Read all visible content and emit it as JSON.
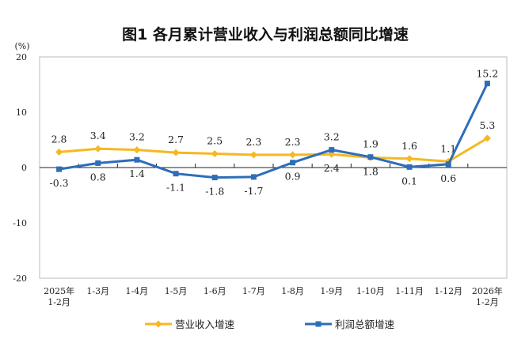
{
  "chart_data": {
    "type": "line",
    "title": "图1  各月累计营业收入与利润总额同比增速",
    "ylabel": "(%)",
    "ylim": [
      -20,
      20
    ],
    "yticks": [
      "20",
      "10",
      "0",
      "-10",
      "-20"
    ],
    "ytick_values": [
      20,
      10,
      0,
      -10,
      -20
    ],
    "categories": [
      [
        "2025年",
        "1-2月"
      ],
      [
        "1-3月"
      ],
      [
        "1-4月"
      ],
      [
        "1-5月"
      ],
      [
        "1-6月"
      ],
      [
        "1-7月"
      ],
      [
        "1-8月"
      ],
      [
        "1-9月"
      ],
      [
        "1-10月"
      ],
      [
        "1-11月"
      ],
      [
        "1-12月"
      ],
      [
        "2026年",
        "1-2月"
      ]
    ],
    "series": [
      {
        "name": "营业收入增速",
        "color": "#F5B820",
        "marker": "diamond",
        "values": [
          2.8,
          3.4,
          3.2,
          2.7,
          2.5,
          2.3,
          2.3,
          2.4,
          1.8,
          1.6,
          1.1,
          5.3
        ],
        "labels": [
          "2.8",
          "3.4",
          "3.2",
          "2.7",
          "2.5",
          "2.3",
          "2.3",
          "2.4",
          "1.8",
          "1.6",
          "1.1",
          "5.3"
        ]
      },
      {
        "name": "利润总额增速",
        "color": "#2E6DB8",
        "marker": "square",
        "values": [
          -0.3,
          0.8,
          1.4,
          -1.1,
          -1.8,
          -1.7,
          0.9,
          3.2,
          1.9,
          0.1,
          0.6,
          15.2
        ],
        "labels": [
          "-0.3",
          "0.8",
          "1.4",
          "-1.1",
          "-1.8",
          "-1.7",
          "0.9",
          "3.2",
          "1.9",
          "0.1",
          "0.6",
          "15.2"
        ]
      }
    ],
    "legend": "bottom",
    "grid": false
  }
}
